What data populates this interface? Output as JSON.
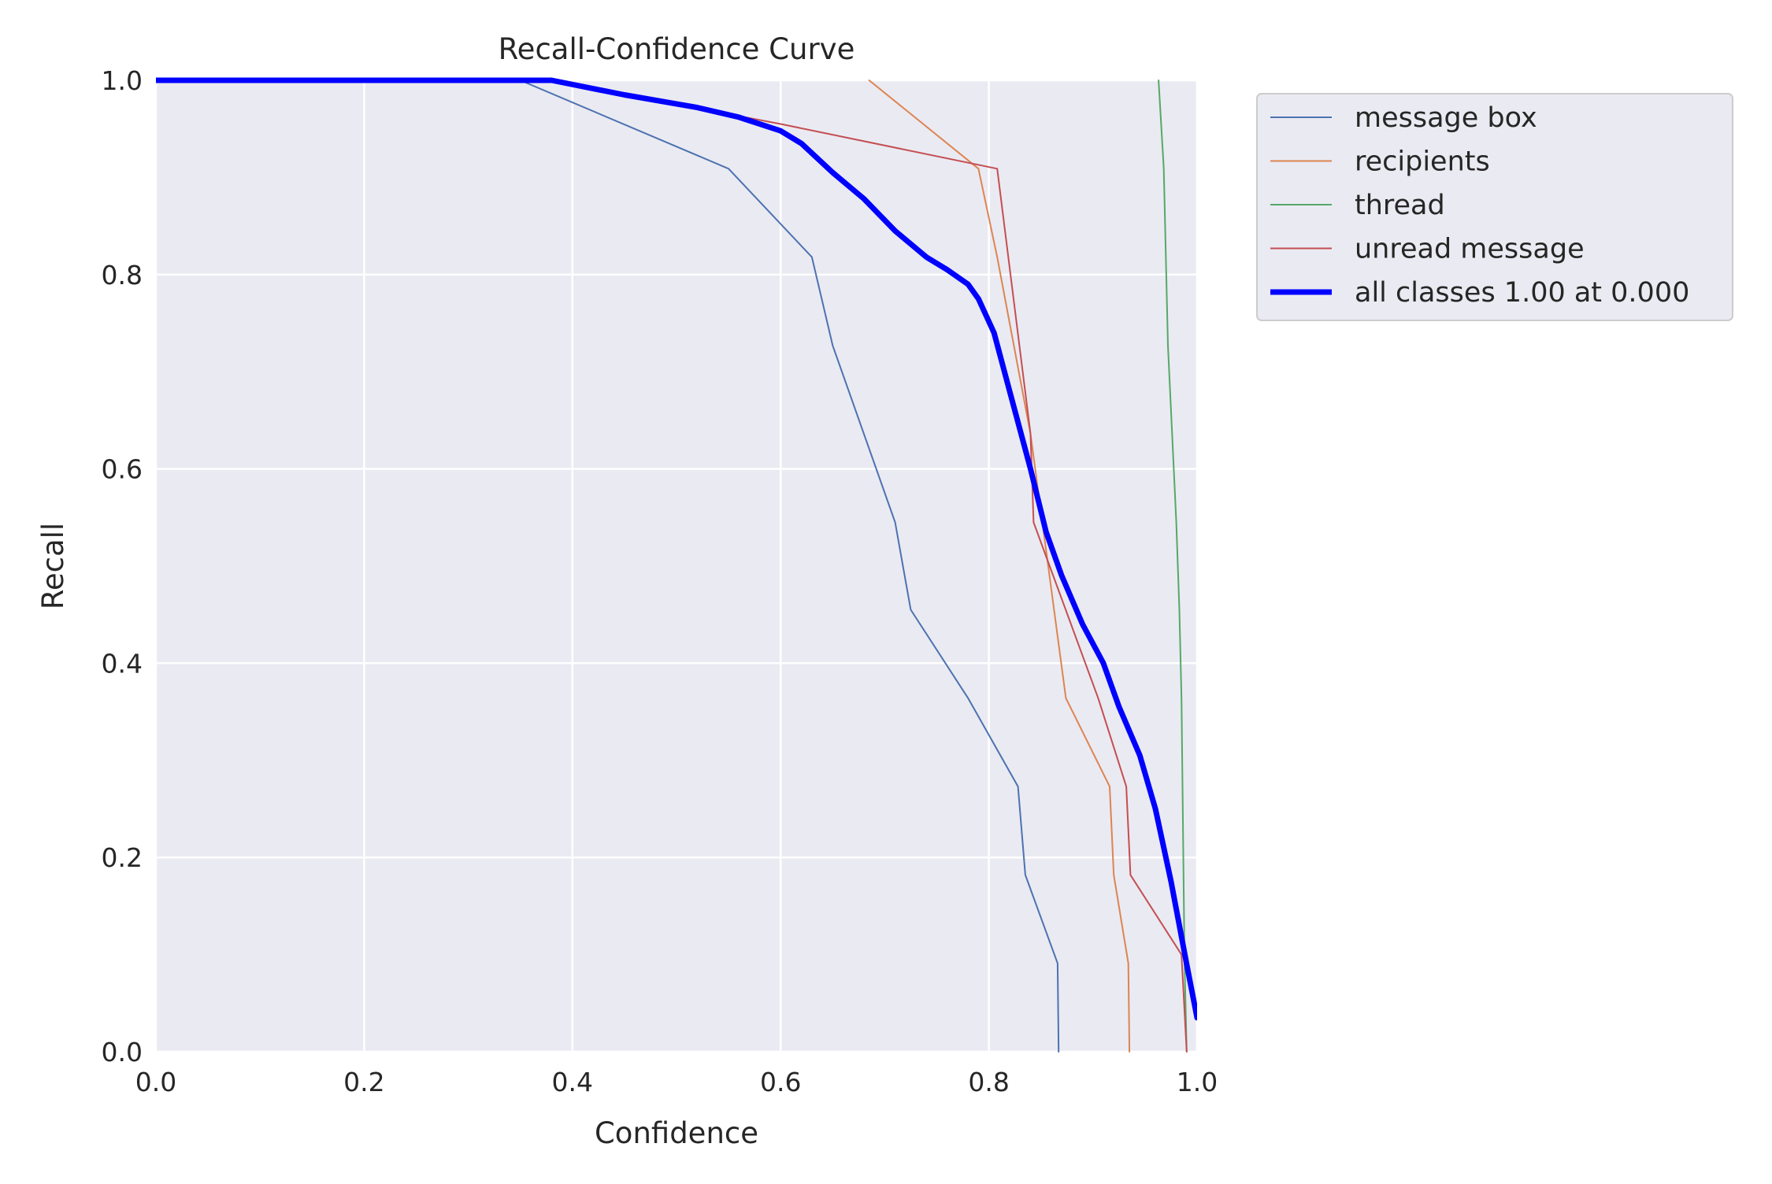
{
  "chart_data": {
    "type": "line",
    "title": "Recall-Confidence Curve",
    "xlabel": "Confidence",
    "ylabel": "Recall",
    "xlim": [
      0,
      1
    ],
    "ylim": [
      0,
      1
    ],
    "xticks": [
      "0.0",
      "0.2",
      "0.4",
      "0.6",
      "0.8",
      "1.0"
    ],
    "yticks": [
      "0.0",
      "0.2",
      "0.4",
      "0.6",
      "0.8",
      "1.0"
    ],
    "grid": true,
    "legend_position": "outside-upper-right",
    "background": "#eaeaf2",
    "series": [
      {
        "name": "message box",
        "color": "#4c72b0",
        "width": 2,
        "x": [
          0.0,
          0.35,
          0.55,
          0.63,
          0.65,
          0.71,
          0.725,
          0.78,
          0.828,
          0.835,
          0.866,
          0.867
        ],
        "y": [
          1.0,
          1.0,
          0.909,
          0.818,
          0.727,
          0.545,
          0.455,
          0.364,
          0.273,
          0.182,
          0.091,
          0.0
        ]
      },
      {
        "name": "recipients",
        "color": "#dd8452",
        "width": 2,
        "x": [
          0.685,
          0.79,
          0.808,
          0.84,
          0.874,
          0.916,
          0.92,
          0.934,
          0.935
        ],
        "y": [
          1.0,
          0.909,
          0.818,
          0.636,
          0.364,
          0.273,
          0.182,
          0.091,
          0.0
        ]
      },
      {
        "name": "thread",
        "color": "#55a868",
        "width": 2,
        "x": [
          0.963,
          0.968,
          0.972,
          0.976,
          0.98,
          0.983,
          0.985,
          0.986,
          0.988,
          0.99
        ],
        "y": [
          1.0,
          0.909,
          0.727,
          0.636,
          0.545,
          0.455,
          0.364,
          0.273,
          0.091,
          0.0
        ]
      },
      {
        "name": "unread message",
        "color": "#c44e52",
        "width": 2,
        "x": [
          0.0,
          0.38,
          0.6,
          0.808,
          0.84,
          0.843,
          0.905,
          0.932,
          0.936,
          0.985,
          0.99
        ],
        "y": [
          1.0,
          1.0,
          0.955,
          0.909,
          0.636,
          0.545,
          0.364,
          0.273,
          0.182,
          0.1,
          0.0
        ]
      },
      {
        "name": "all classes 1.00 at 0.000",
        "color": "#0000ff",
        "width": 7,
        "x": [
          0.0,
          0.38,
          0.45,
          0.52,
          0.56,
          0.6,
          0.62,
          0.65,
          0.68,
          0.71,
          0.74,
          0.76,
          0.78,
          0.79,
          0.805,
          0.82,
          0.84,
          0.855,
          0.87,
          0.89,
          0.91,
          0.925,
          0.945,
          0.96,
          0.975,
          0.99,
          1.0
        ],
        "y": [
          1.0,
          1.0,
          0.985,
          0.972,
          0.962,
          0.948,
          0.935,
          0.905,
          0.878,
          0.845,
          0.818,
          0.805,
          0.79,
          0.775,
          0.74,
          0.68,
          0.6,
          0.535,
          0.49,
          0.44,
          0.4,
          0.355,
          0.305,
          0.25,
          0.175,
          0.09,
          0.035
        ]
      }
    ]
  }
}
